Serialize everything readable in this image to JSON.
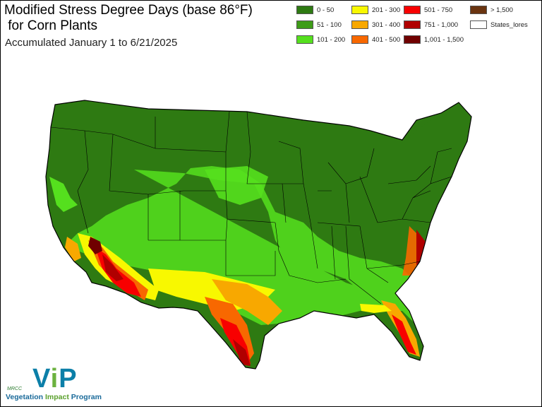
{
  "title": "Modified Stress Degree Days (base 86°F)\n for Corn Plants",
  "subtitle": "Accumulated January 1 to 6/21/2025",
  "legend": [
    {
      "label": "0 - 50",
      "color": "#2e7a12"
    },
    {
      "label": "51 - 100",
      "color": "#3e9c18"
    },
    {
      "label": "101 - 200",
      "color": "#55e01e"
    },
    {
      "label": "201 - 300",
      "color": "#f8f800"
    },
    {
      "label": "301 - 400",
      "color": "#f8a800"
    },
    {
      "label": "401 - 500",
      "color": "#f86800"
    },
    {
      "label": "501 - 750",
      "color": "#f80000"
    },
    {
      "label": "751 - 1,000",
      "color": "#b00000"
    },
    {
      "label": "1,001 - 1,500",
      "color": "#700000"
    },
    {
      "label": "> 1,500",
      "color": "#6a3410"
    },
    {
      "label": "States_lores",
      "color": "#ffffff"
    }
  ],
  "logo": {
    "mrcc": "MRCC",
    "vip_v": "V",
    "vip_i": "i",
    "vip_p": "P",
    "program_1": "Vegetation ",
    "program_2": "Impact",
    "program_3": " Program"
  }
}
